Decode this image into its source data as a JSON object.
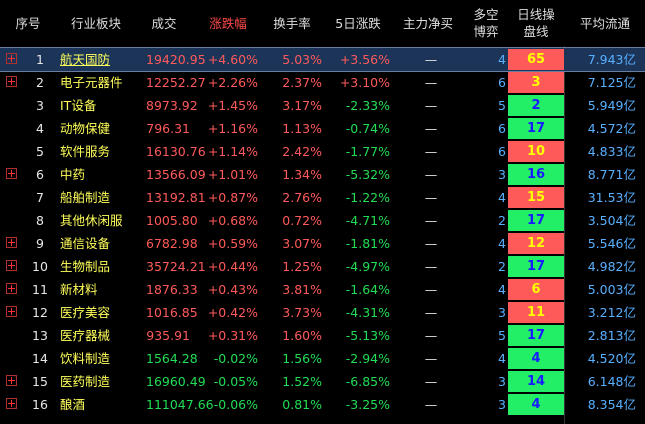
{
  "header": {
    "seq": "序号",
    "sector": "行业板块",
    "price": "成交",
    "change": "涨跌幅",
    "turnover": "换手率",
    "five_day": "5日涨跌",
    "main_net": "主力净买",
    "dk_game_1": "多空",
    "dk_game_2": "博弈",
    "daily_op_1": "日线操",
    "daily_op_2": "盘线",
    "avg_float": "平均流通"
  },
  "rows": [
    {
      "idx": "1",
      "expand": true,
      "name": "航天国防",
      "price": "19420.95",
      "change": "+4.60%",
      "change_dir": "up",
      "turnover": "5.03%",
      "five": "+3.56%",
      "five_dir": "up",
      "main": "—",
      "dk": "4",
      "daily": "65",
      "daily_color": "hot",
      "flow": "7.943亿"
    },
    {
      "idx": "2",
      "expand": true,
      "name": "电子元器件",
      "price": "12252.27",
      "change": "+2.26%",
      "change_dir": "up",
      "turnover": "2.37%",
      "five": "+3.10%",
      "five_dir": "up",
      "main": "—",
      "dk": "6",
      "daily": "3",
      "daily_color": "hot",
      "flow": "7.125亿"
    },
    {
      "idx": "3",
      "expand": false,
      "name": "IT设备",
      "price": "8973.92",
      "change": "+1.45%",
      "change_dir": "up",
      "turnover": "3.17%",
      "five": "-2.33%",
      "five_dir": "down",
      "main": "—",
      "dk": "5",
      "daily": "2",
      "daily_color": "cold",
      "flow": "5.949亿"
    },
    {
      "idx": "4",
      "expand": false,
      "name": "动物保健",
      "price": "796.31",
      "change": "+1.16%",
      "change_dir": "up",
      "turnover": "1.13%",
      "five": "-0.74%",
      "five_dir": "down",
      "main": "—",
      "dk": "6",
      "daily": "17",
      "daily_color": "cold",
      "flow": "4.572亿"
    },
    {
      "idx": "5",
      "expand": false,
      "name": "软件服务",
      "price": "16130.76",
      "change": "+1.14%",
      "change_dir": "up",
      "turnover": "2.42%",
      "five": "-1.77%",
      "five_dir": "down",
      "main": "—",
      "dk": "6",
      "daily": "10",
      "daily_color": "hot",
      "flow": "4.833亿"
    },
    {
      "idx": "6",
      "expand": true,
      "name": "中药",
      "price": "13566.09",
      "change": "+1.01%",
      "change_dir": "up",
      "turnover": "1.34%",
      "five": "-5.32%",
      "five_dir": "down",
      "main": "—",
      "dk": "3",
      "daily": "16",
      "daily_color": "cold",
      "flow": "8.771亿"
    },
    {
      "idx": "7",
      "expand": false,
      "name": "船舶制造",
      "price": "13192.81",
      "change": "+0.87%",
      "change_dir": "up",
      "turnover": "2.76%",
      "five": "-1.22%",
      "five_dir": "down",
      "main": "—",
      "dk": "4",
      "daily": "15",
      "daily_color": "hot",
      "flow": "31.53亿"
    },
    {
      "idx": "8",
      "expand": false,
      "name": "其他休闲服",
      "price": "1005.80",
      "change": "+0.68%",
      "change_dir": "up",
      "turnover": "0.72%",
      "five": "-4.71%",
      "five_dir": "down",
      "main": "—",
      "dk": "2",
      "daily": "17",
      "daily_color": "cold",
      "flow": "3.504亿"
    },
    {
      "idx": "9",
      "expand": true,
      "name": "通信设备",
      "price": "6782.98",
      "change": "+0.59%",
      "change_dir": "up",
      "turnover": "3.07%",
      "five": "-1.81%",
      "five_dir": "down",
      "main": "—",
      "dk": "4",
      "daily": "12",
      "daily_color": "hot",
      "flow": "5.546亿"
    },
    {
      "idx": "10",
      "expand": true,
      "name": "生物制品",
      "price": "35724.21",
      "change": "+0.44%",
      "change_dir": "up",
      "turnover": "1.25%",
      "five": "-4.97%",
      "five_dir": "down",
      "main": "—",
      "dk": "2",
      "daily": "17",
      "daily_color": "cold",
      "flow": "4.982亿"
    },
    {
      "idx": "11",
      "expand": true,
      "name": "新材料",
      "price": "1876.33",
      "change": "+0.43%",
      "change_dir": "up",
      "turnover": "3.81%",
      "five": "-1.64%",
      "five_dir": "down",
      "main": "—",
      "dk": "4",
      "daily": "6",
      "daily_color": "hot",
      "flow": "5.003亿"
    },
    {
      "idx": "12",
      "expand": true,
      "name": "医疗美容",
      "price": "1016.85",
      "change": "+0.42%",
      "change_dir": "up",
      "turnover": "3.73%",
      "five": "-4.31%",
      "five_dir": "down",
      "main": "—",
      "dk": "3",
      "daily": "11",
      "daily_color": "hot",
      "flow": "3.212亿"
    },
    {
      "idx": "13",
      "expand": false,
      "name": "医疗器械",
      "price": "935.91",
      "change": "+0.31%",
      "change_dir": "up",
      "turnover": "1.60%",
      "five": "-5.13%",
      "five_dir": "down",
      "main": "—",
      "dk": "5",
      "daily": "17",
      "daily_color": "cold",
      "flow": "2.813亿"
    },
    {
      "idx": "14",
      "expand": false,
      "name": "饮料制造",
      "price": "1564.28",
      "change": "-0.02%",
      "change_dir": "down",
      "turnover": "1.56%",
      "five": "-2.94%",
      "five_dir": "down",
      "main": "—",
      "dk": "4",
      "daily": "4",
      "daily_color": "cold",
      "flow": "4.520亿"
    },
    {
      "idx": "15",
      "expand": true,
      "name": "医药制造",
      "price": "16960.49",
      "change": "-0.05%",
      "change_dir": "down",
      "turnover": "1.52%",
      "five": "-6.85%",
      "five_dir": "down",
      "main": "—",
      "dk": "3",
      "daily": "14",
      "daily_color": "cold",
      "flow": "6.148亿"
    },
    {
      "idx": "16",
      "expand": true,
      "name": "酿酒",
      "price": "111047.66",
      "change": "-0.06%",
      "change_dir": "down",
      "turnover": "0.81%",
      "five": "-3.25%",
      "five_dir": "down",
      "main": "—",
      "dk": "3",
      "daily": "4",
      "daily_color": "cold",
      "flow": "8.354亿"
    }
  ],
  "colors": {
    "up": "#ff5a5a",
    "down": "#22dd55",
    "sector_name": "#ffff5a",
    "info": "#58b0ff",
    "hot_bg": "#ff5a5a",
    "cold_bg": "#22ee66"
  }
}
